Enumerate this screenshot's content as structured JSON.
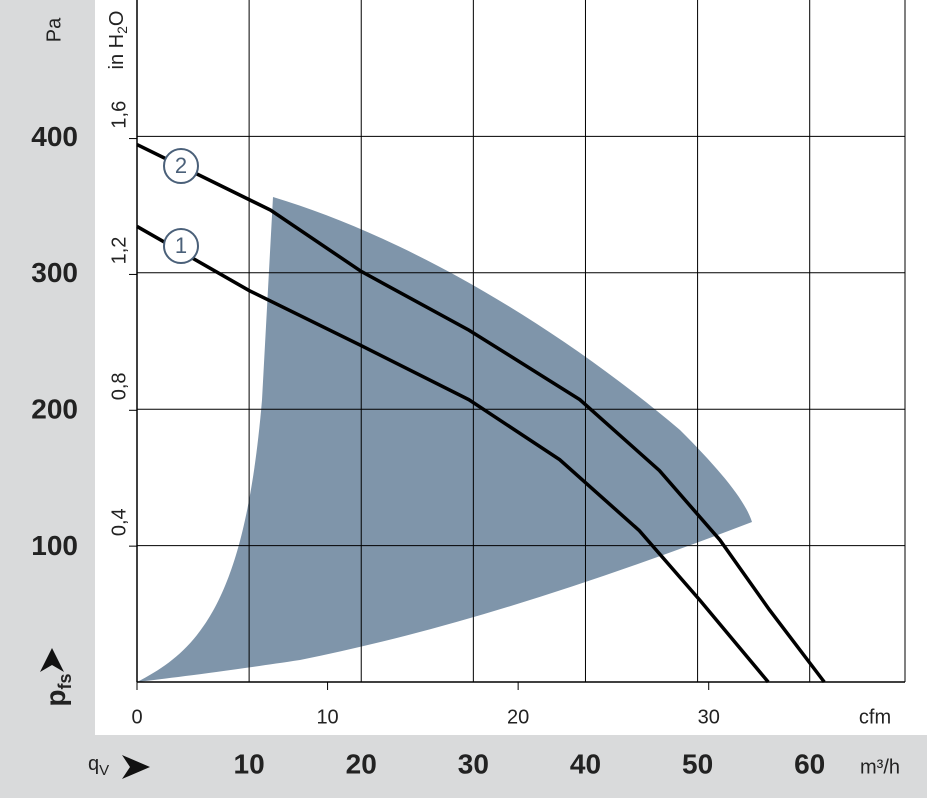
{
  "chart_data": {
    "type": "line",
    "y_label": "Pa",
    "y2_label": [
      "in H",
      "2",
      "O"
    ],
    "y_symbol": {
      "main": "p",
      "sub": "fs"
    },
    "x_symbol": {
      "main": "q",
      "sub": "V"
    },
    "x_label": "m³/h",
    "x2_label": "cfm",
    "xlim": [
      0,
      68.5
    ],
    "xticks": [
      10,
      20,
      30,
      40,
      50,
      60
    ],
    "x2lim": [
      0,
      40.3
    ],
    "x2ticks": [
      0,
      10,
      20,
      30
    ],
    "ylim": [
      0,
      500
    ],
    "yticks": [
      100,
      200,
      300,
      400
    ],
    "y2lim": [
      0,
      2.008
    ],
    "y2ticks": [
      {
        "value": 0.4,
        "label": "0,4"
      },
      {
        "value": 0.8,
        "label": "0,8"
      },
      {
        "value": 1.2,
        "label": "1,2"
      },
      {
        "value": 1.6,
        "label": "1,6"
      }
    ],
    "grid": true,
    "series": [
      {
        "name": "1",
        "color": "#000000",
        "x": [
          0,
          10,
          19.9,
          29.6,
          37.7,
          44.8,
          50.2,
          56.3
        ],
        "values": [
          334,
          287,
          247,
          207,
          163,
          111,
          60,
          0
        ]
      },
      {
        "name": "2",
        "color": "#000000",
        "x": [
          0,
          11.9,
          20,
          29.6,
          39.5,
          46.6,
          52,
          56.4,
          61.3
        ],
        "values": [
          394,
          346,
          301,
          258,
          207,
          155,
          104,
          53,
          0
        ]
      }
    ]
  }
}
